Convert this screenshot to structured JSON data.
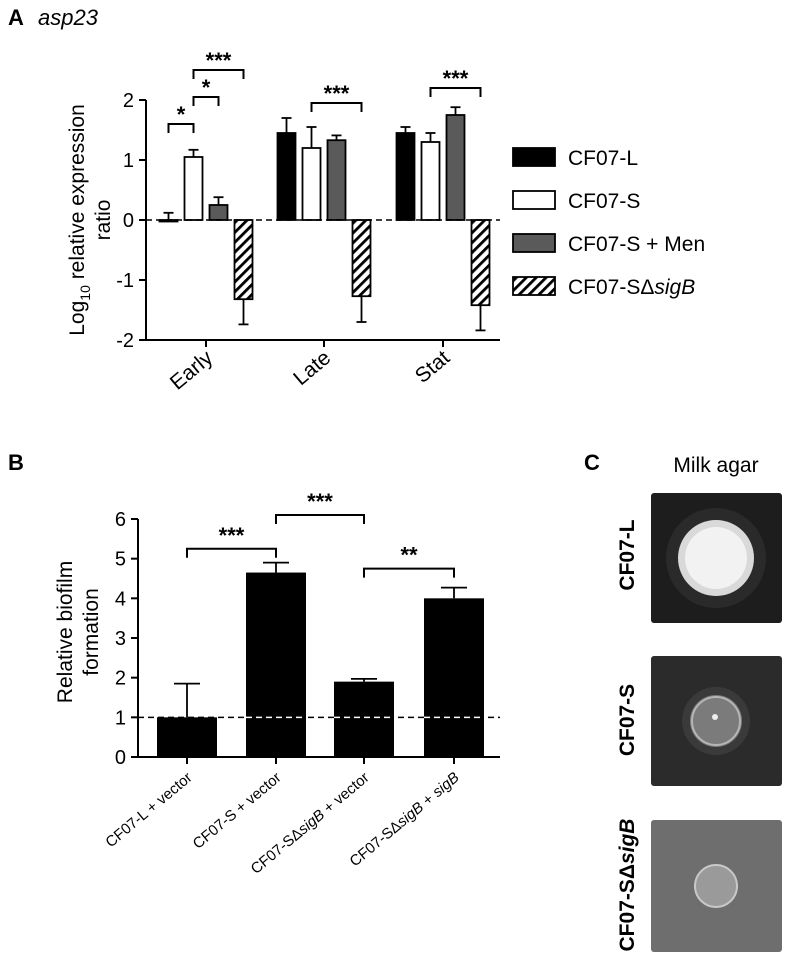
{
  "panel_a": {
    "letter": "A",
    "gene": "asp23",
    "ylabel_pre": "Log",
    "ylabel_sub": "10",
    "ylabel_post": " relative expression",
    "ylabel_line2": "ratio",
    "legend": [
      {
        "pre": "CF07-L",
        "it": "",
        "fill": "#000000",
        "pattern": false
      },
      {
        "pre": "CF07-S",
        "it": "",
        "fill": "#ffffff",
        "pattern": false
      },
      {
        "pre": "CF07-S + Men",
        "it": "",
        "fill": "#5a5a5a",
        "pattern": false
      },
      {
        "pre": "CF07-SΔ",
        "it": "sigB",
        "fill": "#ffffff",
        "pattern": true
      }
    ],
    "significance": [
      {
        "label": "*",
        "from_group": 0,
        "from_bar": 0,
        "to_group": 0,
        "to_bar": 1,
        "y": 1.6
      },
      {
        "label": "*",
        "from_group": 0,
        "from_bar": 1,
        "to_group": 0,
        "to_bar": 2,
        "y": 2.05
      },
      {
        "label": "***",
        "from_group": 0,
        "from_bar": 1,
        "to_group": 0,
        "to_bar": 3,
        "y": 2.5
      },
      {
        "label": "***",
        "from_group": 1,
        "from_bar": 1,
        "to_group": 1,
        "to_bar": 3,
        "y": 1.95
      },
      {
        "label": "***",
        "from_group": 2,
        "from_bar": 1,
        "to_group": 2,
        "to_bar": 3,
        "y": 2.2
      }
    ]
  },
  "panel_b": {
    "letter": "B",
    "ylabel_line1": "Relative biofilm",
    "ylabel_line2": "formation",
    "xlabels": [
      {
        "pre": "CF07-L + vector",
        "it": "",
        "post": ""
      },
      {
        "pre": "CF07-S + vector",
        "it": "",
        "post": ""
      },
      {
        "pre": "CF07-SΔ",
        "it": "sigB",
        "post": " + vector"
      },
      {
        "pre": "CF07-SΔ",
        "it": "sigB",
        "post": " + "
      },
      {
        "pre": "",
        "it": "sigB",
        "post": ""
      }
    ],
    "significance": [
      {
        "label": "***",
        "from": 0,
        "to": 1,
        "y": 5.25
      },
      {
        "label": "***",
        "from": 1,
        "to": 2,
        "y": 6.1
      },
      {
        "label": "**",
        "from": 2,
        "to": 3,
        "y": 4.75
      }
    ]
  },
  "panel_c": {
    "letter": "C",
    "title": "Milk agar",
    "rows": [
      {
        "pre": "CF07-L",
        "it": ""
      },
      {
        "pre": "CF07-S",
        "it": ""
      },
      {
        "pre": "CF07-SΔ",
        "it": "sigB"
      }
    ]
  },
  "chart_data": [
    {
      "type": "bar",
      "title": "asp23",
      "ylabel": "Log10 relative expression ratio",
      "xlabel": "",
      "categories": [
        "Early",
        "Late",
        "Stat"
      ],
      "ylim": [
        -2,
        2
      ],
      "yticks": [
        -2,
        -1,
        0,
        1,
        2
      ],
      "reference_line": 0,
      "legend_position": "right",
      "series": [
        {
          "name": "CF07-L",
          "values": [
            0.0,
            1.45,
            1.45
          ],
          "errors": [
            0.12,
            0.25,
            0.1
          ]
        },
        {
          "name": "CF07-S",
          "values": [
            1.05,
            1.2,
            1.3
          ],
          "errors": [
            0.12,
            0.35,
            0.15
          ]
        },
        {
          "name": "CF07-S + Men",
          "values": [
            0.25,
            1.33,
            1.75
          ],
          "errors": [
            0.13,
            0.08,
            0.13
          ]
        },
        {
          "name": "CF07-SΔsigB",
          "values": [
            -1.32,
            -1.27,
            -1.42
          ],
          "errors": [
            0.42,
            0.43,
            0.42
          ]
        }
      ]
    },
    {
      "type": "bar",
      "ylabel": "Relative biofilm formation",
      "xlabel": "",
      "categories": [
        "CF07-L + vector",
        "CF07-S + vector",
        "CF07-SΔsigB + vector",
        "CF07-SΔsigB + sigB"
      ],
      "values": [
        1.0,
        4.65,
        1.9,
        4.0
      ],
      "errors": [
        0.85,
        0.25,
        0.07,
        0.27
      ],
      "ylim": [
        0,
        6
      ],
      "yticks": [
        0,
        1,
        2,
        3,
        4,
        5,
        6
      ],
      "reference_line": 1
    }
  ]
}
